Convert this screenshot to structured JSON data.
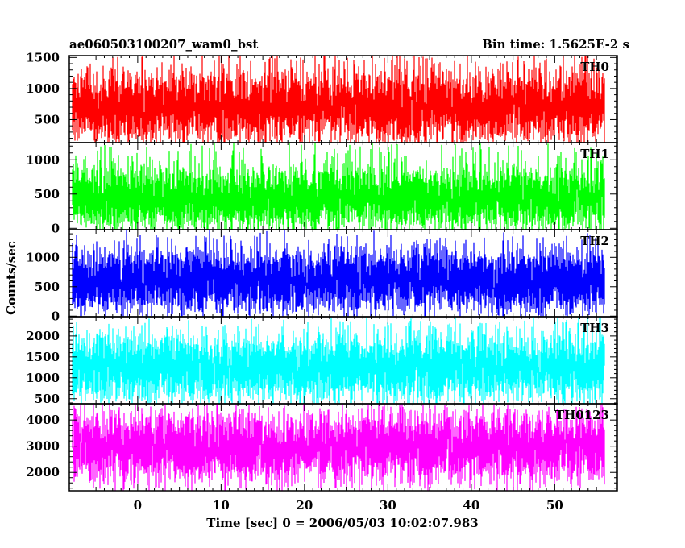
{
  "header": {
    "title": "ae060503100207_wam0_bst",
    "bin_time": "Bin time: 1.5625E-2 s"
  },
  "chart_data": {
    "type": "line",
    "xlabel": "Time [sec] 0 = 2006/05/03 10:02:07.983",
    "ylabel": "Counts/sec",
    "xlim": [
      -8.2,
      57.5
    ],
    "x_ticks": [
      0,
      10,
      20,
      30,
      40,
      50
    ],
    "x_data_range": [
      -7.8,
      56.0
    ],
    "bin_time": 0.015625,
    "panels": [
      {
        "name": "TH0",
        "color": "#ff0000",
        "ylim": [
          130,
          1530
        ],
        "y_ticks": [
          500,
          1000,
          1500
        ],
        "mean": 720,
        "low": 120,
        "high": 1600
      },
      {
        "name": "TH1",
        "color": "#00ff00",
        "ylim": [
          -20,
          1250
        ],
        "y_ticks": [
          0,
          500,
          1000
        ],
        "mean": 440,
        "low": 40,
        "high": 1250
      },
      {
        "name": "TH2",
        "color": "#0000ff",
        "ylim": [
          -10,
          1470
        ],
        "y_ticks": [
          0,
          500,
          1000
        ],
        "mean": 610,
        "low": 60,
        "high": 1470
      },
      {
        "name": "TH3",
        "color": "#00ffff",
        "ylim": [
          380,
          2460
        ],
        "y_ticks": [
          500,
          1000,
          1500,
          2000
        ],
        "mean": 1250,
        "low": 420,
        "high": 2460
      },
      {
        "name": "TH0123",
        "color": "#ff00ff",
        "ylim": [
          1300,
          4620
        ],
        "y_ticks": [
          2000,
          3000,
          4000
        ],
        "mean": 2950,
        "low": 1300,
        "high": 4620
      }
    ]
  }
}
